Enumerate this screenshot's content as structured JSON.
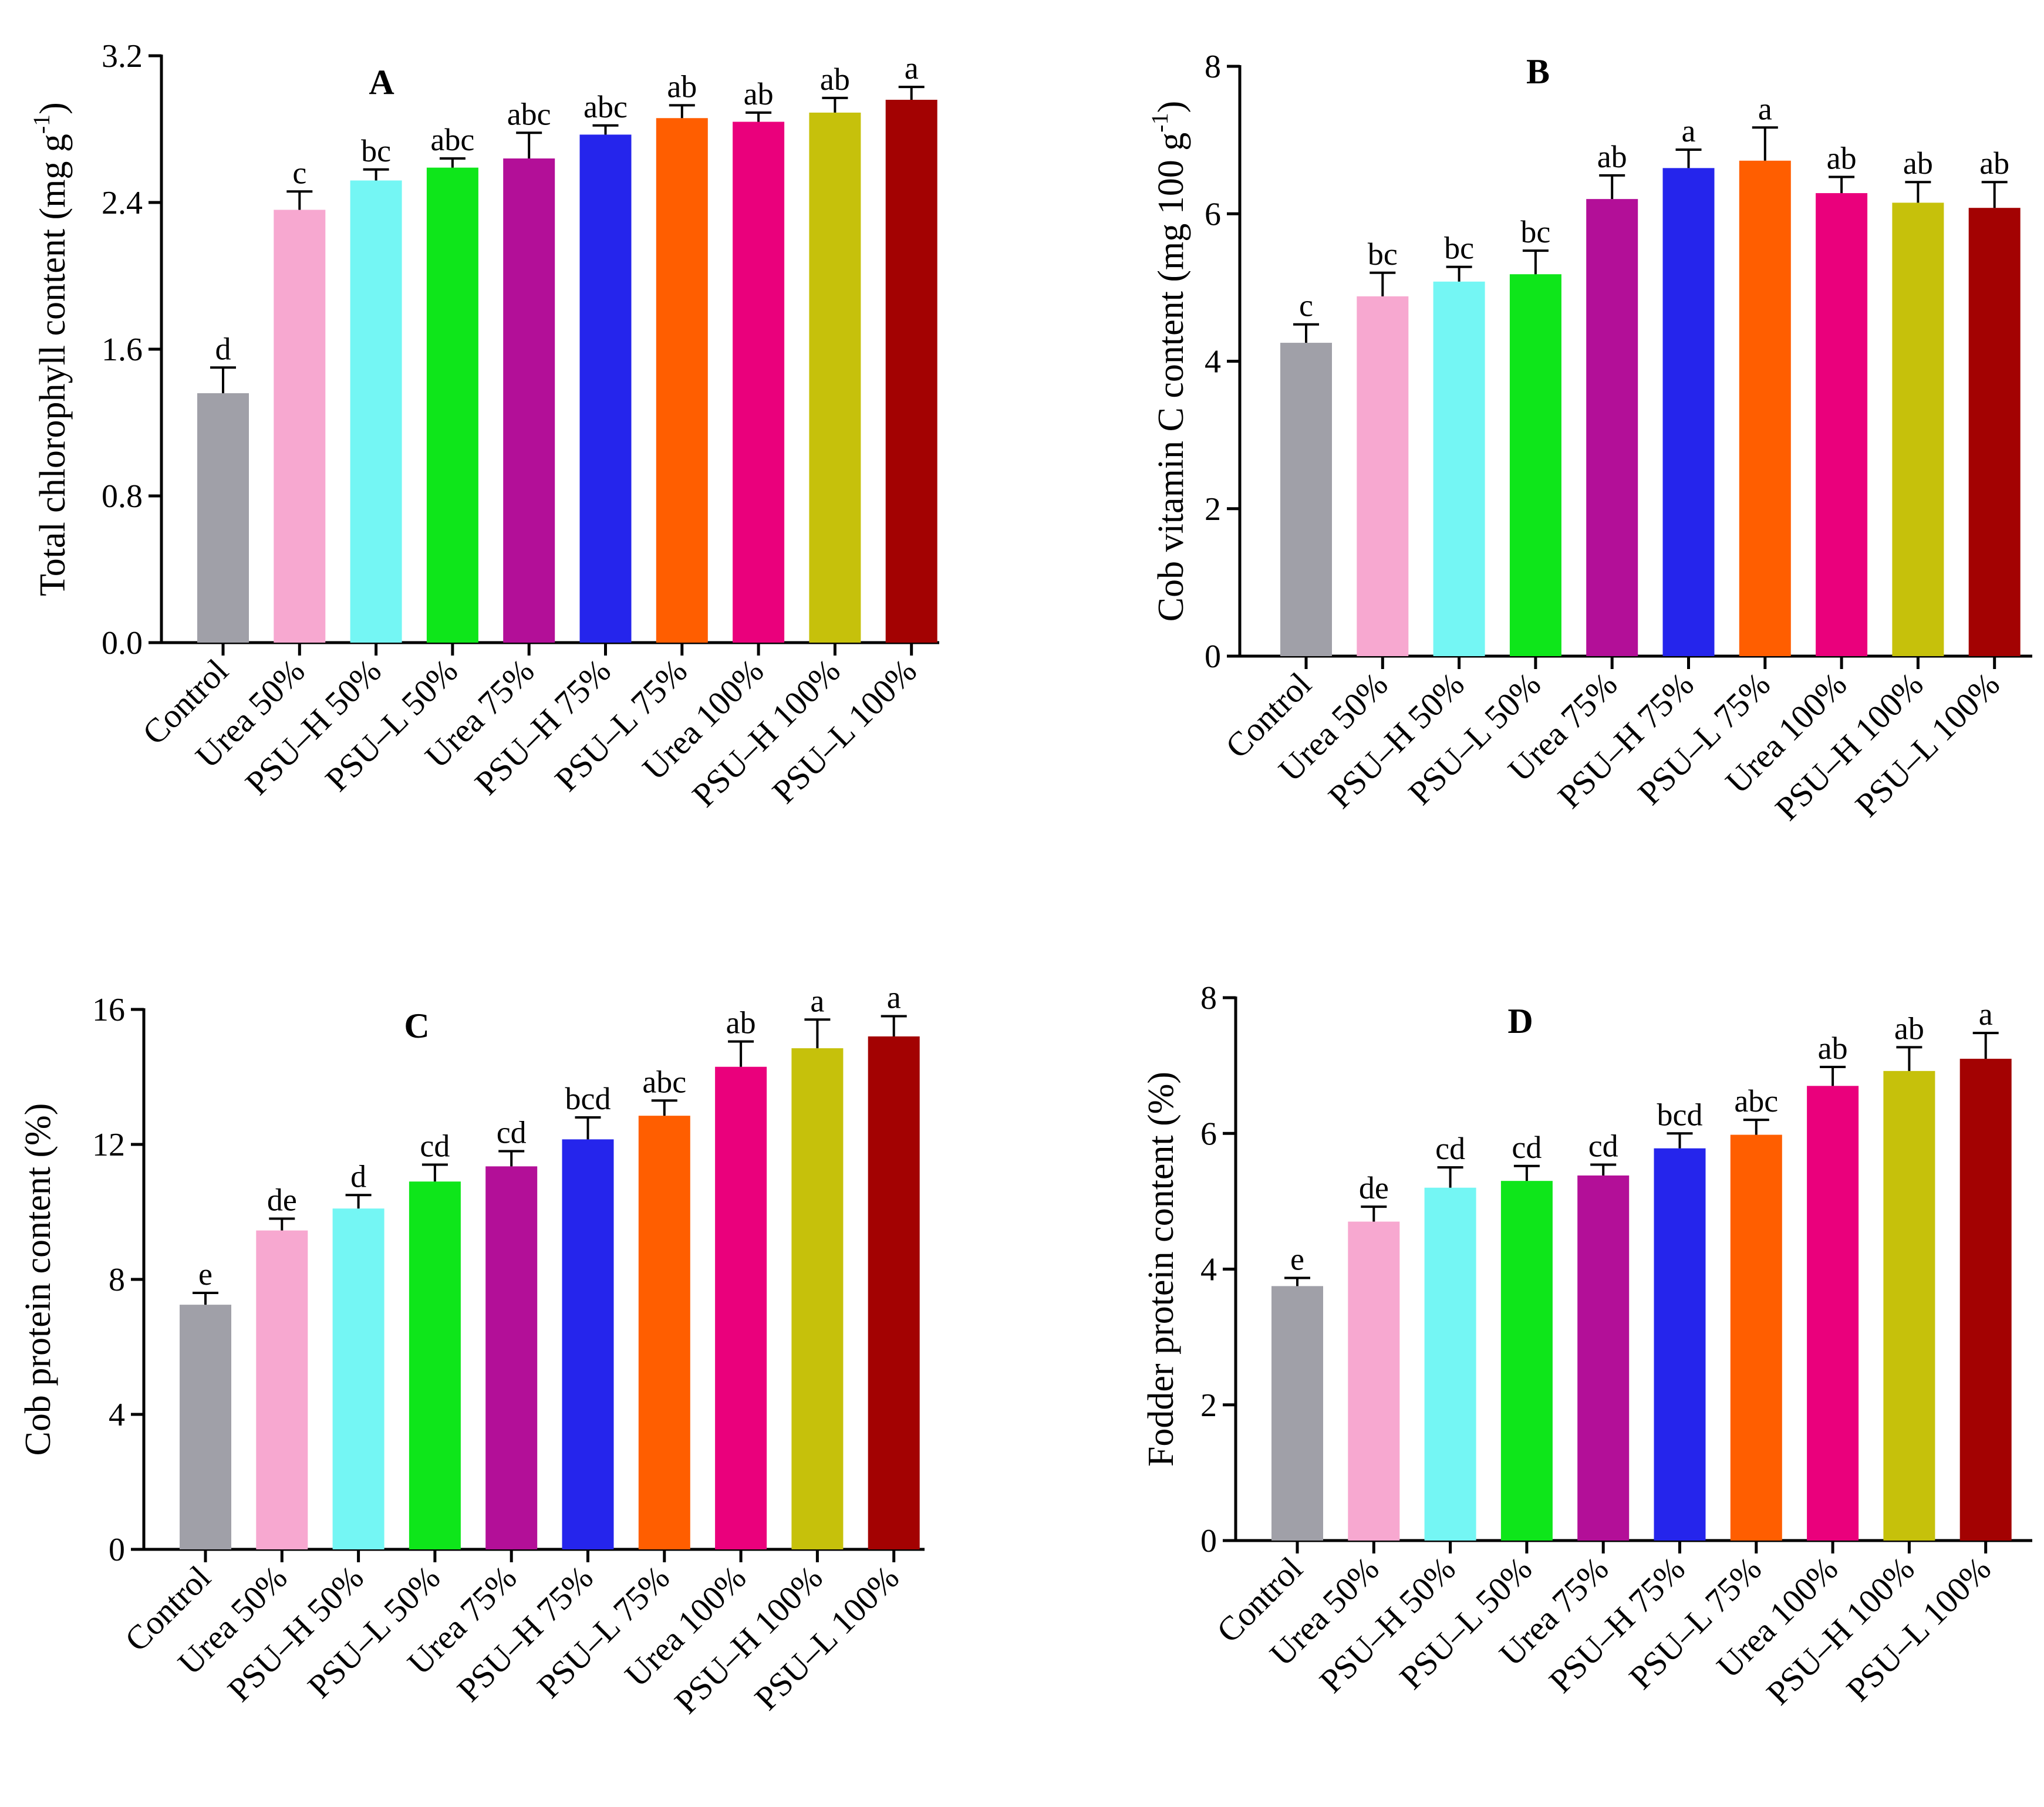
{
  "chart_data": [
    {
      "type": "bar",
      "title": "A",
      "ylabel": "Total chlorophyll content (mg g",
      "ylabel_sup": "-1",
      "ylabel_close": ")",
      "ylim": [
        0,
        3.2
      ],
      "yticks": [
        "0.0",
        "0.8",
        "1.6",
        "2.4",
        "3.2"
      ],
      "categories": [
        "Control",
        "Urea 50%",
        "PSU–H 50%",
        "PSU–L 50%",
        "Urea 75%",
        "PSU–H 75%",
        "PSU–L 75%",
        "Urea 100%",
        "PSU–H 100%",
        "PSU–L 100%"
      ],
      "values": [
        1.36,
        2.36,
        2.52,
        2.59,
        2.64,
        2.77,
        2.86,
        2.84,
        2.89,
        2.96
      ],
      "errors": [
        0.14,
        0.1,
        0.06,
        0.05,
        0.14,
        0.05,
        0.07,
        0.05,
        0.08,
        0.07
      ],
      "letters": [
        "d",
        "c",
        "bc",
        "abc",
        "abc",
        "abc",
        "ab",
        "ab",
        "ab",
        "a"
      ]
    },
    {
      "type": "bar",
      "title": "B",
      "ylabel": "Cob vitamin C content (mg 100 g",
      "ylabel_sup": "-1",
      "ylabel_close": ")",
      "ylim": [
        0,
        8
      ],
      "yticks": [
        "0",
        "2",
        "4",
        "6",
        "8"
      ],
      "categories": [
        "Control",
        "Urea 50%",
        "PSU–H 50%",
        "PSU–L 50%",
        "Urea 75%",
        "PSU–H 75%",
        "PSU–L 75%",
        "Urea 100%",
        "PSU–H 100%",
        "PSU–L 100%"
      ],
      "values": [
        4.25,
        4.88,
        5.08,
        5.18,
        6.2,
        6.62,
        6.72,
        6.28,
        6.15,
        6.08
      ],
      "errors": [
        0.25,
        0.32,
        0.2,
        0.32,
        0.32,
        0.25,
        0.45,
        0.22,
        0.28,
        0.35
      ],
      "letters": [
        "c",
        "bc",
        "bc",
        "bc",
        "ab",
        "a",
        "a",
        "ab",
        "ab",
        "ab"
      ]
    },
    {
      "type": "bar",
      "title": "C",
      "ylabel": "Cob protein content (%)",
      "ylabel_sup": "",
      "ylabel_close": "",
      "ylim": [
        0,
        16
      ],
      "yticks": [
        "0",
        "4",
        "8",
        "12",
        "16"
      ],
      "categories": [
        "Control",
        "Urea 50%",
        "PSU–H 50%",
        "PSU–L 50%",
        "Urea 75%",
        "PSU–H 75%",
        "PSU–L 75%",
        "Urea 100%",
        "PSU–H 100%",
        "PSU–L 100%"
      ],
      "values": [
        7.25,
        9.45,
        10.1,
        10.9,
        11.35,
        12.15,
        12.85,
        14.3,
        14.85,
        15.2
      ],
      "errors": [
        0.35,
        0.35,
        0.4,
        0.5,
        0.45,
        0.65,
        0.45,
        0.75,
        0.85,
        0.6
      ],
      "letters": [
        "e",
        "de",
        "d",
        "cd",
        "cd",
        "bcd",
        "abc",
        "ab",
        "a",
        "a"
      ]
    },
    {
      "type": "bar",
      "title": "D",
      "ylabel": "Fodder protein content (%)",
      "ylabel_sup": "",
      "ylabel_close": "",
      "ylim": [
        0,
        8
      ],
      "yticks": [
        "0",
        "2",
        "4",
        "6",
        "8"
      ],
      "categories": [
        "Control",
        "Urea 50%",
        "PSU–H 50%",
        "PSU–L 50%",
        "Urea 75%",
        "PSU–H 75%",
        "PSU–L 75%",
        "Urea 100%",
        "PSU–H 100%",
        "PSU–L 100%"
      ],
      "values": [
        3.75,
        4.7,
        5.2,
        5.3,
        5.38,
        5.78,
        5.98,
        6.7,
        6.92,
        7.1
      ],
      "errors": [
        0.12,
        0.22,
        0.3,
        0.22,
        0.16,
        0.22,
        0.22,
        0.28,
        0.35,
        0.38
      ],
      "letters": [
        "e",
        "de",
        "cd",
        "cd",
        "cd",
        "bcd",
        "abc",
        "ab",
        "ab",
        "a"
      ]
    }
  ],
  "colors": [
    "#a0a0a8",
    "#f7a8d0",
    "#74f6f4",
    "#0ee61a",
    "#b30f98",
    "#2525ec",
    "#ff5e00",
    "#ea007c",
    "#c6c10b",
    "#a30202"
  ]
}
